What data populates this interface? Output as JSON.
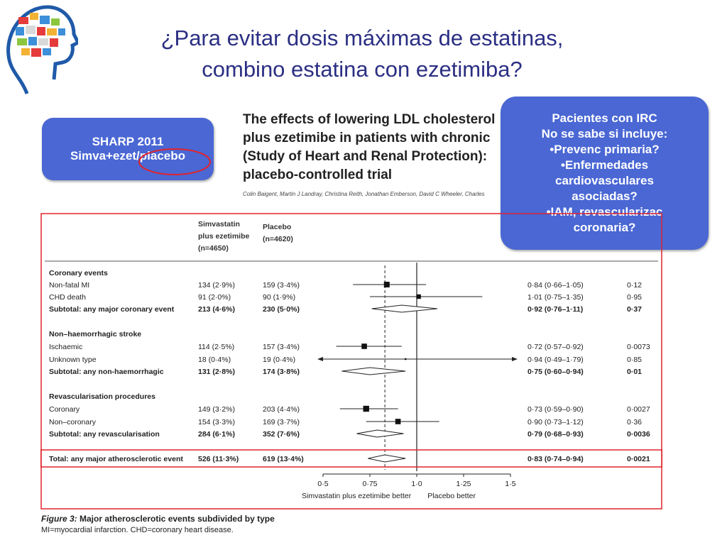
{
  "slide": {
    "title_line1": "¿Para evitar dosis máximas de estatinas,",
    "title_line2": "combino estatina con ezetimiba?"
  },
  "sharp_box": {
    "line1": "SHARP 2011",
    "line2": "Simva+ezet/placebo"
  },
  "irc_box": {
    "lines": [
      "Pacientes con IRC",
      "No se sabe si incluye:",
      "•Prevenc primaria?",
      "•Enfermedades",
      "cardiovasculares",
      "asociadas?",
      "•IAM, revascularizac",
      "coronaria?"
    ]
  },
  "paper": {
    "title_lines": [
      "The effects of lowering LDL cholesterol",
      "plus ezetimibe in patients with chronic",
      "(Study of Heart and Renal Protection):",
      "placebo-controlled trial"
    ],
    "authors": "Colin Baigent, Martin J Landray, Christina Reith, Jonathan Emberson, David C Wheeler, Charles"
  },
  "caption": {
    "figure_label": "Figure 3:",
    "figure_title": " Major atherosclerotic events subdivided by type",
    "note": "MI=myocardial infarction. CHD=coronary heart disease."
  },
  "colors": {
    "title": "#2b2f83",
    "box_fill": "#4a67d4",
    "highlight_red": "#e0242c"
  },
  "chart_data": {
    "type": "forest",
    "columns": {
      "group1": [
        "Simvastatin",
        "plus ezetimibe",
        "(n=4650)"
      ],
      "group2": [
        "Placebo",
        "(n=4620)"
      ]
    },
    "xaxis": {
      "ticks": [
        0.5,
        0.75,
        1.0,
        1.25,
        1.5
      ],
      "tick_labels": [
        "0·5",
        "0·75",
        "1·0",
        "1·25",
        "1·5"
      ],
      "range": [
        0.5,
        1.5
      ],
      "left_label": "Simvastatin plus ezetimibe better",
      "right_label": "Placebo better"
    },
    "reference_line": 1.0,
    "overall_dashed_line": 0.83,
    "rows": [
      {
        "kind": "header",
        "label": "Coronary events"
      },
      {
        "kind": "estimate",
        "label": "Non-fatal MI",
        "g1": "134 (2·9%)",
        "g2": "159 (3·4%)",
        "rr": 0.84,
        "lo": 0.66,
        "hi": 1.05,
        "rr_text": "0·84 (0·66–1·05)",
        "p": "0·12",
        "size": 1.0
      },
      {
        "kind": "estimate",
        "label": "CHD death",
        "g1": "91 (2·0%)",
        "g2": "90 (1·9%)",
        "rr": 1.01,
        "lo": 0.75,
        "hi": 1.35,
        "rr_text": "1·01 (0·75–1·35)",
        "p": "0·95",
        "size": 0.8
      },
      {
        "kind": "subtotal",
        "label": "Subtotal: any major coronary event",
        "g1": "213 (4·6%)",
        "g2": "230 (5·0%)",
        "rr": 0.92,
        "lo": 0.76,
        "hi": 1.11,
        "rr_text": "0·92 (0·76–1·11)",
        "p": "0·37"
      },
      {
        "kind": "header",
        "label": "Non–haemorrhagic stroke"
      },
      {
        "kind": "estimate",
        "label": "Ischaemic",
        "g1": "114 (2·5%)",
        "g2": "157 (3·4%)",
        "rr": 0.72,
        "lo": 0.57,
        "hi": 0.92,
        "rr_text": "0·72 (0·57–0·92)",
        "p": "0·0073",
        "size": 0.95
      },
      {
        "kind": "estimate",
        "label": "Unknown type",
        "g1": "18 (0·4%)",
        "g2": "19 (0·4%)",
        "rr": 0.94,
        "lo": 0.49,
        "hi": 1.79,
        "rr_text": "0·94 (0·49–1·79)",
        "p": "0·85",
        "size": 0.3,
        "arrows": true
      },
      {
        "kind": "subtotal",
        "label": "Subtotal: any non-haemorrhagic",
        "g1": "131 (2·8%)",
        "g2": "174 (3·8%)",
        "rr": 0.75,
        "lo": 0.6,
        "hi": 0.94,
        "rr_text": "0·75 (0·60–0·94)",
        "p": "0·01"
      },
      {
        "kind": "header",
        "label": "Revascularisation procedures"
      },
      {
        "kind": "estimate",
        "label": "Coronary",
        "g1": "149 (3·2%)",
        "g2": "203 (4·4%)",
        "rr": 0.73,
        "lo": 0.59,
        "hi": 0.9,
        "rr_text": "0·73 (0·59–0·90)",
        "p": "0·0027",
        "size": 1.05
      },
      {
        "kind": "estimate",
        "label": "Non–coronary",
        "g1": "154 (3·3%)",
        "g2": "169 (3·7%)",
        "rr": 0.9,
        "lo": 0.73,
        "hi": 1.12,
        "rr_text": "0·90 (0·73–1·12)",
        "p": "0·36",
        "size": 0.95
      },
      {
        "kind": "subtotal",
        "label": "Subtotal: any revascularisation",
        "g1": "284 (6·1%)",
        "g2": "352 (7·6%)",
        "rr": 0.79,
        "lo": 0.68,
        "hi": 0.93,
        "rr_text": "0·79 (0·68–0·93)",
        "p": "0·0036"
      },
      {
        "kind": "total",
        "label": "Total: any major atherosclerotic event",
        "g1": "526 (11·3%)",
        "g2": "619 (13·4%)",
        "rr": 0.83,
        "lo": 0.74,
        "hi": 0.94,
        "rr_text": "0·83 (0·74–0·94)",
        "p": "0·0021"
      }
    ]
  }
}
